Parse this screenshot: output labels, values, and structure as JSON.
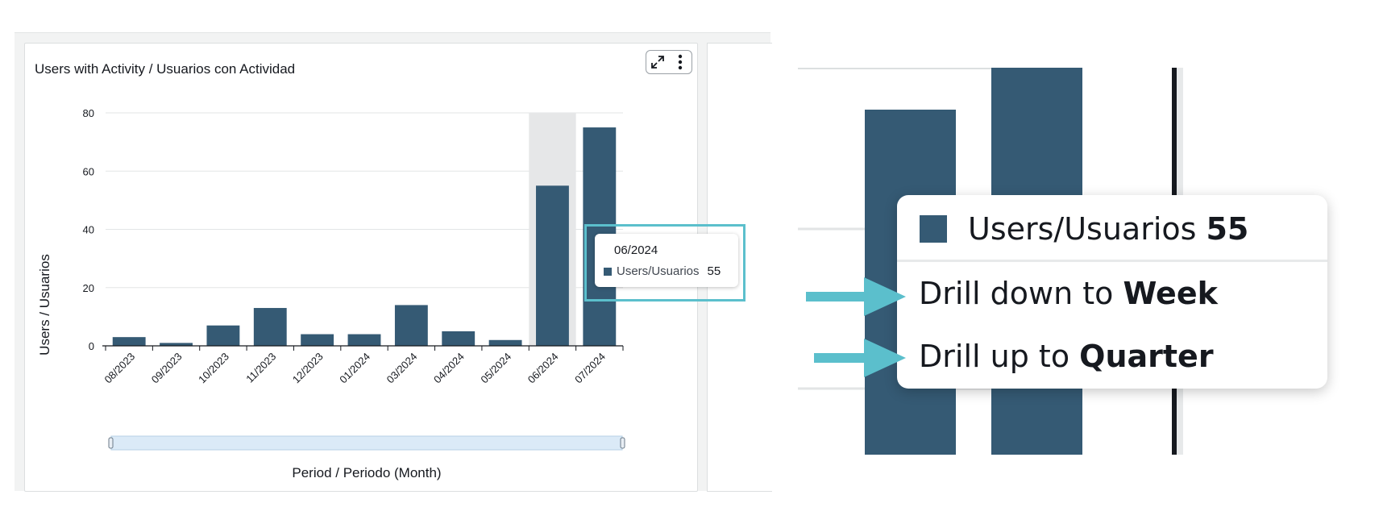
{
  "visual": {
    "title": "Users with Activity / Usuarios con Actividad",
    "toolbar": {
      "expand_icon": "expand-icon",
      "more_icon": "more-vertical-icon"
    }
  },
  "chart_data": {
    "type": "bar",
    "title": "Users with Activity / Usuarios con Actividad",
    "xlabel": "Period / Periodo (Month)",
    "ylabel": "Users / Usuarios",
    "categories": [
      "08/2023",
      "09/2023",
      "10/2023",
      "11/2023",
      "12/2023",
      "01/2024",
      "03/2024",
      "04/2024",
      "05/2024",
      "06/2024",
      "07/2024"
    ],
    "series": [
      {
        "name": "Users/Usuarios",
        "values": [
          3,
          1,
          7,
          13,
          4,
          4,
          14,
          5,
          2,
          55,
          75
        ],
        "color": "#355a74"
      }
    ],
    "ylim": [
      0,
      80
    ],
    "yticks": [
      0,
      20,
      40,
      60,
      80
    ],
    "grid": true,
    "highlighted_category": "06/2024"
  },
  "tooltip": {
    "period": "06/2024",
    "series": "Users/Usuarios",
    "value": "55"
  },
  "zoom": {
    "series": "Users/Usuarios",
    "value": "55",
    "menu": [
      {
        "prefix": "Drill down to ",
        "level": "Week"
      },
      {
        "prefix": "Drill up to ",
        "level": "Quarter"
      }
    ],
    "arrow_color": "#5bbfcc"
  }
}
